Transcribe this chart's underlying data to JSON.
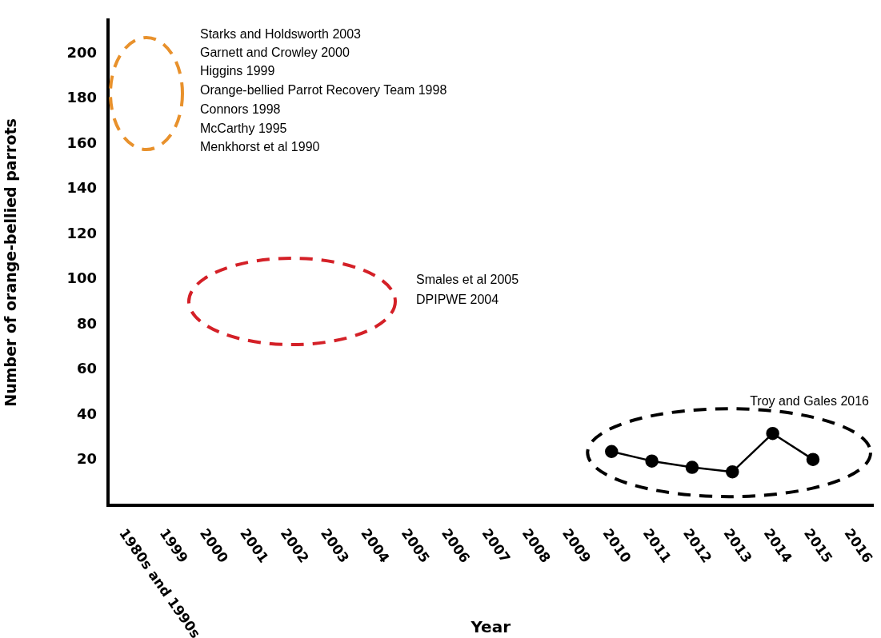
{
  "chart_data": {
    "type": "line",
    "xlabel": "Year",
    "ylabel": "Number of orange-bellied parrots",
    "categories": [
      "1980s and 1990s",
      "1999",
      "2000",
      "2001",
      "2002",
      "2003",
      "2004",
      "2005",
      "2006",
      "2007",
      "2008",
      "2009",
      "2010",
      "2011",
      "2012",
      "2013",
      "2014",
      "2015",
      "2016"
    ],
    "series": [
      {
        "color": "#000000",
        "values": [
          null,
          null,
          null,
          null,
          null,
          null,
          null,
          null,
          null,
          null,
          null,
          null,
          23.8,
          19.6,
          16.8,
          14.8,
          31.8,
          20.3,
          null
        ]
      }
    ],
    "ylim": [
      0,
      215
    ],
    "yticks": [
      20,
      40,
      60,
      80,
      100,
      120,
      140,
      160,
      180,
      200
    ],
    "grid": false,
    "legend": false,
    "marker": "circle",
    "line_style": "solid",
    "annotations": [
      "Starks and Holdsworth 2003",
      "Garnett and Crowley 2000",
      "Higgins 1999",
      "Orange-bellied Parrot Recovery Team 1998",
      "Connors 1998",
      "McCarthy 1995",
      "Menkhorst et al 1990",
      "Smales et al 2005",
      "DPIPWE 2004",
      "Troy and Gales 2016"
    ]
  }
}
